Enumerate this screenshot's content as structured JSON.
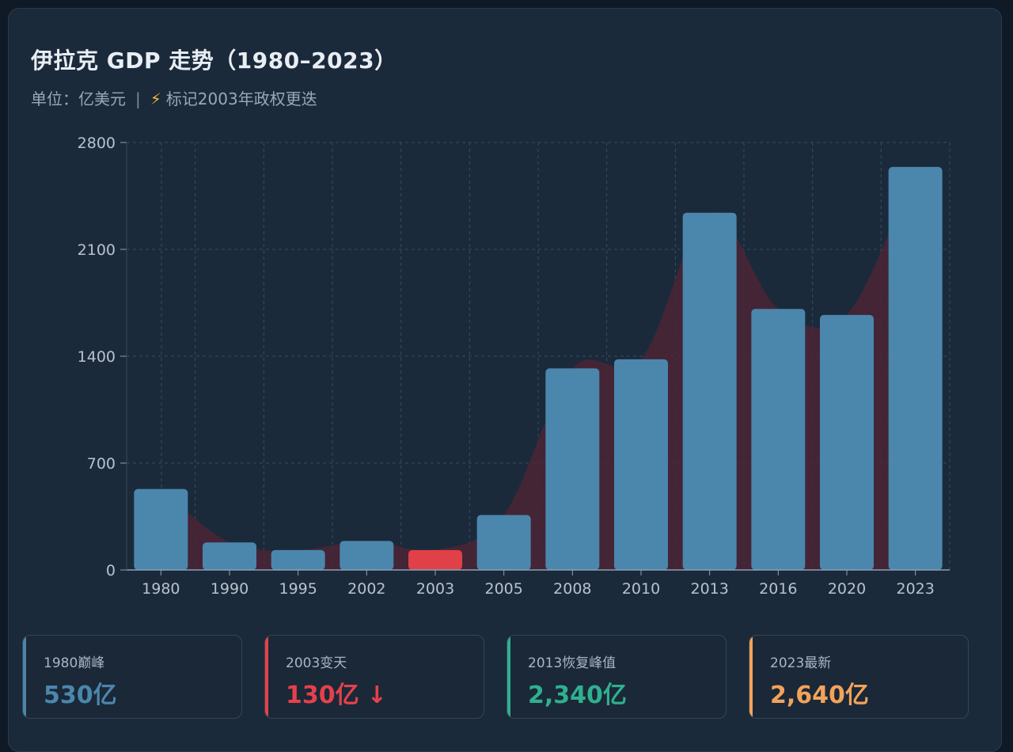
{
  "header": {
    "title": "伊拉克 GDP 走势（1980–2023）",
    "unit_text": "单位：亿美元",
    "separator": "|",
    "note_icon": "lightning-icon",
    "note_text": "标记2003年政权更迭"
  },
  "chart_data": {
    "type": "bar",
    "categories": [
      "1980",
      "1990",
      "1995",
      "2002",
      "2003",
      "2005",
      "2008",
      "2010",
      "2013",
      "2016",
      "2020",
      "2023"
    ],
    "values": [
      530,
      180,
      130,
      190,
      130,
      360,
      1320,
      1380,
      2340,
      1710,
      1670,
      2640
    ],
    "highlight": {
      "category": "2003"
    },
    "ylim": [
      0,
      2800
    ],
    "y_ticks": [
      0,
      700,
      1400,
      2100,
      2800
    ],
    "grid": true,
    "area_overlay": true
  },
  "colors": {
    "bar": "#4b86ad",
    "highlight_bar": "#e04048",
    "area": "#4a2436",
    "grid": "#3a4b5e",
    "axis": "#8da0b5"
  },
  "stats": [
    {
      "label": "1980巅峰",
      "value": "530亿",
      "arrow": "",
      "color": "#4b86ad"
    },
    {
      "label": "2003变天",
      "value": "130亿",
      "arrow": "↓",
      "color": "#e5414b"
    },
    {
      "label": "2013恢复峰值",
      "value": "2,340亿",
      "arrow": "",
      "color": "#2fb08f"
    },
    {
      "label": "2023最新",
      "value": "2,640亿",
      "arrow": "",
      "color": "#f2a35a"
    }
  ]
}
